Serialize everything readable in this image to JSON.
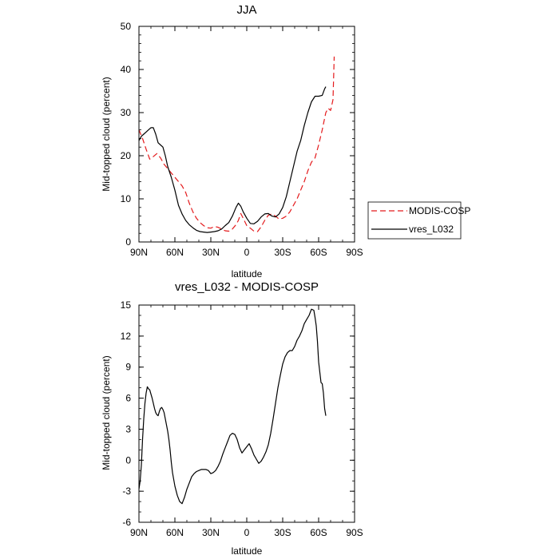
{
  "chart_data": [
    {
      "type": "line",
      "title": "JJA",
      "xlabel": "latitude",
      "ylabel": "Mid-topped cloud (percent)",
      "xlim": [
        90,
        -90
      ],
      "ylim": [
        0,
        50
      ],
      "x_ticks": [
        90,
        60,
        30,
        0,
        -30,
        -60,
        -90
      ],
      "x_tick_labels": [
        "90N",
        "60N",
        "30N",
        "0",
        "30S",
        "60S",
        "90S"
      ],
      "y_ticks": [
        0,
        10,
        20,
        30,
        40,
        50
      ],
      "y_tick_labels": [
        "0",
        "10",
        "20",
        "30",
        "40",
        "50"
      ],
      "legend": {
        "position": "right",
        "entries": [
          "MODIS-COSP",
          "vres_L032"
        ]
      },
      "series": [
        {
          "name": "MODIS-COSP",
          "color": "#e41a1c",
          "dash": "dashed",
          "x": [
            90,
            87,
            84,
            81,
            78,
            75,
            72,
            69,
            66,
            63,
            60,
            57,
            54,
            51,
            48,
            45,
            42,
            39,
            36,
            33,
            30,
            27,
            24,
            21,
            18,
            15,
            12,
            9,
            7,
            5,
            3,
            0,
            -3,
            -6,
            -9,
            -12,
            -15,
            -18,
            -21,
            -24,
            -27,
            -30,
            -33,
            -36,
            -39,
            -42,
            -45,
            -48,
            -51,
            -54,
            -57,
            -60,
            -63,
            -66,
            -68,
            -70,
            -72,
            -73
          ],
          "y": [
            26,
            24,
            21.5,
            19.2,
            19.8,
            20.5,
            19.5,
            18,
            17,
            16,
            15,
            14,
            13,
            11.5,
            9,
            7,
            5.5,
            4.5,
            3.8,
            3.3,
            3.2,
            3.6,
            3.4,
            3,
            2.6,
            2.5,
            3,
            4,
            5,
            6.6,
            5.5,
            3.8,
            3.2,
            2.5,
            2.4,
            3.5,
            5,
            6.2,
            6.5,
            6,
            5.3,
            5.5,
            6,
            7,
            8.5,
            10,
            12,
            14,
            16.5,
            18.5,
            19.5,
            22.5,
            26,
            30,
            31,
            30.5,
            33,
            43
          ]
        },
        {
          "name": "vres_L032",
          "color": "#000000",
          "dash": "solid",
          "x": [
            90,
            88,
            86,
            84,
            82,
            80,
            78,
            76,
            74,
            72,
            70,
            68,
            66,
            63,
            60,
            57,
            54,
            51,
            48,
            45,
            42,
            39,
            36,
            33,
            30,
            27,
            24,
            21,
            18,
            15,
            12,
            9,
            7,
            5,
            3,
            0,
            -3,
            -6,
            -9,
            -12,
            -15,
            -18,
            -21,
            -24,
            -27,
            -30,
            -33,
            -36,
            -39,
            -42,
            -45,
            -48,
            -51,
            -54,
            -57,
            -60,
            -63,
            -65,
            -66
          ],
          "y": [
            23.5,
            24.5,
            25,
            25.5,
            26,
            26.5,
            26.5,
            25,
            23,
            22.5,
            22,
            20,
            17.5,
            15,
            12,
            8.5,
            6.5,
            5,
            4,
            3.3,
            2.7,
            2.4,
            2.3,
            2.2,
            2.3,
            2.4,
            2.6,
            3,
            3.8,
            4.5,
            6,
            8,
            9,
            8.3,
            7,
            5.5,
            4.3,
            4.2,
            4.8,
            5.8,
            6.5,
            6.6,
            6,
            5.8,
            6.5,
            8,
            10.5,
            14,
            17.5,
            21,
            23.5,
            27,
            30,
            32.5,
            33.8,
            33.8,
            34,
            35.5,
            36
          ]
        }
      ]
    },
    {
      "type": "line",
      "title": "vres_L032 - MODIS-COSP",
      "xlabel": "latitude",
      "ylabel": "Mid-topped cloud (percent)",
      "xlim": [
        90,
        -90
      ],
      "ylim": [
        -6,
        15
      ],
      "x_ticks": [
        90,
        60,
        30,
        0,
        -30,
        -60,
        -90
      ],
      "x_tick_labels": [
        "90N",
        "60N",
        "30N",
        "0",
        "30S",
        "60S",
        "90S"
      ],
      "y_ticks": [
        -6,
        -3,
        0,
        3,
        6,
        9,
        12,
        15
      ],
      "y_tick_labels": [
        "-6",
        "-3",
        "0",
        "3",
        "6",
        "9",
        "12",
        "15"
      ],
      "series": [
        {
          "name": "vres_L032 - MODIS-COSP",
          "color": "#000000",
          "dash": "solid",
          "x": [
            90,
            89,
            88,
            87,
            86,
            85,
            84,
            83,
            82,
            81,
            80,
            79,
            78,
            77,
            76,
            75,
            74,
            73,
            72,
            71,
            70,
            69,
            68,
            67,
            66,
            65,
            64,
            63,
            62,
            60,
            58,
            56,
            54,
            52,
            50,
            48,
            46,
            44,
            42,
            40,
            38,
            36,
            34,
            32,
            30,
            28,
            26,
            24,
            22,
            20,
            18,
            16,
            14,
            12,
            10,
            8,
            6,
            4,
            2,
            0,
            -2,
            -4,
            -6,
            -8,
            -10,
            -12,
            -14,
            -16,
            -18,
            -20,
            -22,
            -24,
            -26,
            -28,
            -30,
            -32,
            -34,
            -36,
            -38,
            -40,
            -42,
            -44,
            -46,
            -48,
            -50,
            -52,
            -54,
            -56,
            -57,
            -58,
            -59,
            -60,
            -61,
            -62,
            -63,
            -64,
            -65,
            -66
          ],
          "y": [
            -2.8,
            -2,
            -0.5,
            2,
            4,
            5.5,
            6.5,
            7.1,
            6.9,
            6.8,
            6.4,
            6,
            5.5,
            5,
            4.6,
            4.4,
            4.3,
            4.7,
            5,
            5.1,
            4.9,
            4.6,
            4,
            3.4,
            2.8,
            2,
            1,
            -0.2,
            -1.2,
            -2.5,
            -3.4,
            -4,
            -4.2,
            -3.6,
            -2.8,
            -2.2,
            -1.6,
            -1.3,
            -1.1,
            -1,
            -0.9,
            -0.9,
            -0.9,
            -1,
            -1.3,
            -1.2,
            -1,
            -0.6,
            -0.1,
            0.6,
            1.2,
            1.8,
            2.4,
            2.6,
            2.5,
            2,
            1.2,
            0.7,
            1,
            1.3,
            1.6,
            1.1,
            0.5,
            0.1,
            -0.3,
            -0.1,
            0.3,
            0.8,
            1.5,
            2.6,
            4,
            5.5,
            7,
            8.2,
            9.3,
            10,
            10.4,
            10.6,
            10.6,
            11,
            11.6,
            12,
            12.5,
            13.2,
            13.6,
            14,
            14.6,
            14.5,
            13.8,
            13,
            11.5,
            9.5,
            8.5,
            7.5,
            7.4,
            6.5,
            5,
            4.3
          ]
        }
      ]
    }
  ]
}
